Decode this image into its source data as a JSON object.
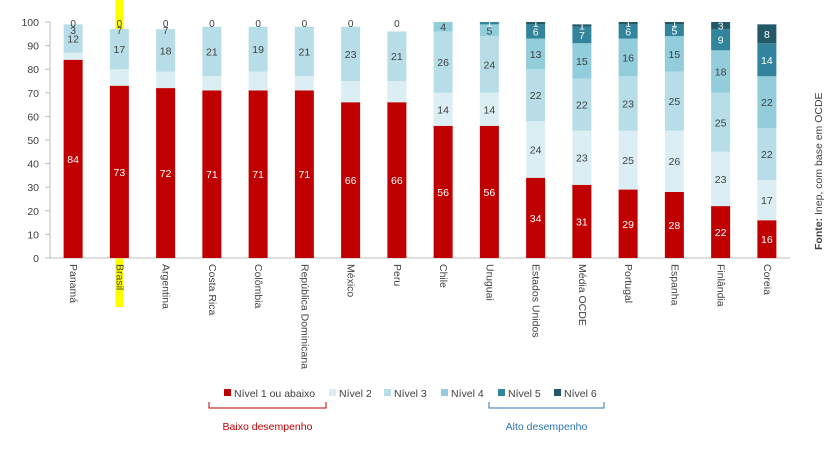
{
  "chart_data": {
    "type": "bar",
    "stacked": true,
    "ylim": [
      0,
      100
    ],
    "yticks": [
      0,
      10,
      20,
      30,
      40,
      50,
      60,
      70,
      80,
      90,
      100
    ],
    "grid": false,
    "legend_position": "bottom",
    "categories": [
      "Panamá",
      "Brasil",
      "Argentina",
      "Costa Rica",
      "Colômbia",
      "República Dominicana",
      "México",
      "Peru",
      "Chile",
      "Uruguai",
      "Estados Unidos",
      "Média OCDE",
      "Portugal",
      "Espanha",
      "Finlândia",
      "Coreia"
    ],
    "highlight_category": "Brasil",
    "series": [
      {
        "name": "Nível 1 ou abaixo",
        "color": "#c00000",
        "values": [
          84,
          73,
          72,
          71,
          71,
          71,
          66,
          66,
          56,
          56,
          34,
          31,
          29,
          28,
          22,
          16
        ]
      },
      {
        "name": "Nível 2",
        "color": "#dbeef4",
        "values": [
          3,
          7,
          7,
          6,
          8,
          6,
          9,
          9,
          14,
          14,
          24,
          23,
          25,
          26,
          23,
          17
        ]
      },
      {
        "name": "Nível 3",
        "color": "#b7dde8",
        "values": [
          12,
          17,
          18,
          21,
          19,
          21,
          23,
          21,
          26,
          24,
          22,
          22,
          23,
          25,
          25,
          22
        ]
      },
      {
        "name": "Nível 4",
        "color": "#92cddc",
        "values": [
          0,
          0,
          0,
          0,
          0,
          0,
          0,
          0,
          4,
          5,
          13,
          15,
          16,
          15,
          18,
          22
        ]
      },
      {
        "name": "Nível 5",
        "color": "#31849b",
        "values": [
          0,
          0,
          0,
          0,
          0,
          0,
          0,
          0,
          0,
          1,
          6,
          7,
          6,
          5,
          9,
          14
        ]
      },
      {
        "name": "Nível 6",
        "color": "#215968",
        "values": [
          0,
          0,
          0,
          0,
          0,
          0,
          0,
          0,
          0,
          0,
          1,
          1,
          1,
          1,
          3,
          8
        ]
      }
    ],
    "label_lines": {
      "Panamá": [
        "0",
        "3"
      ],
      "Brasil": [
        "0",
        "7"
      ],
      "Argentina": [
        "0",
        "7"
      ],
      "Costa Rica": [
        "0"
      ],
      "Colômbia": [
        "0"
      ],
      "República Dominicana": [
        "0"
      ],
      "México": [
        "0"
      ],
      "Peru": [
        "0"
      ]
    },
    "groups": [
      {
        "label": "Baixo desempenho",
        "color": "#c00000"
      },
      {
        "label": "Alto desempenho",
        "color": "#2e75b6"
      }
    ],
    "source_label": "Fonte:",
    "source_text": " Inep, com base em OCDE"
  }
}
